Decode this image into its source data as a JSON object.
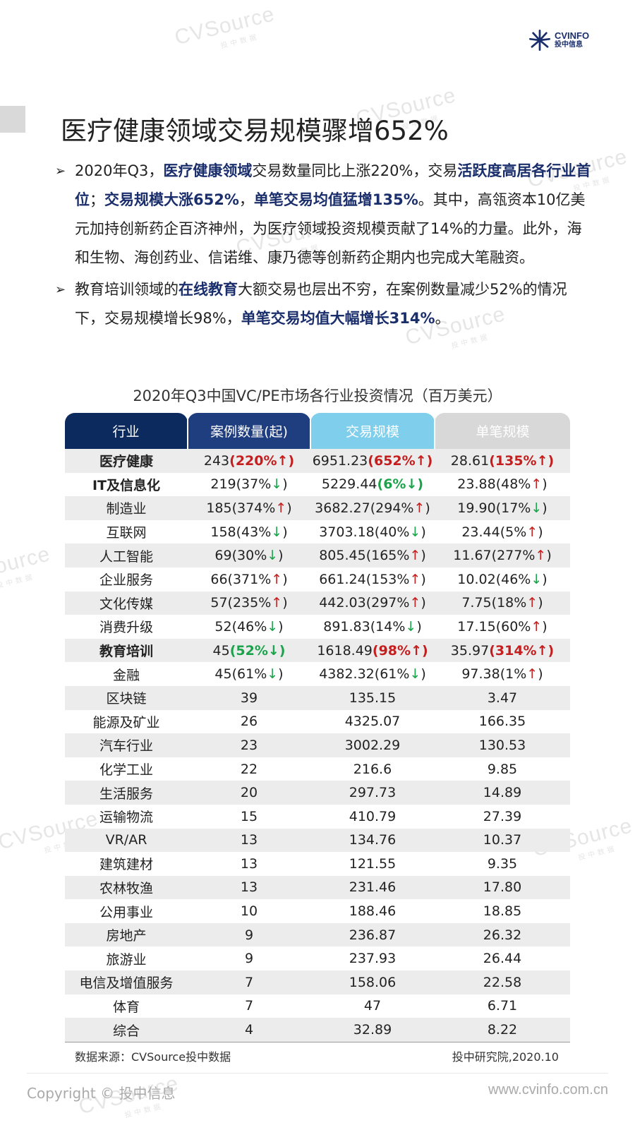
{
  "logo": {
    "brand": "CVINFO",
    "sub": "投中信息"
  },
  "watermark": {
    "text": "CVSource",
    "sub": "投中数据"
  },
  "title": "医疗健康领域交易规模骤增652%",
  "bullets": [
    {
      "parts": [
        {
          "t": "2020年Q3，"
        },
        {
          "t": "医疗健康领域",
          "hl": true
        },
        {
          "t": "交易数量同比上涨220%，交易"
        },
        {
          "t": "活跃度高居各行业首位",
          "hl": true
        },
        {
          "t": "；"
        },
        {
          "t": "交易规模大涨652%",
          "hl": true
        },
        {
          "t": "，"
        },
        {
          "t": "单笔交易均值猛增135%",
          "hl": true
        },
        {
          "t": "。其中，高瓴资本10亿美元加持创新药企百济神州，为医疗领域投资规模贡献了14%的力量。此外，海和生物、海创药业、信诺维、康乃德等创新药企期内也完成大笔融资。"
        }
      ]
    },
    {
      "parts": [
        {
          "t": "教育培训领域的"
        },
        {
          "t": "在线教育",
          "hl": true
        },
        {
          "t": "大额交易也层出不穷，在案例数量减少52%的情况下，交易规模增长98%，"
        },
        {
          "t": "单笔交易均值大幅增长314%",
          "hl": true
        },
        {
          "t": "。"
        }
      ]
    }
  ],
  "table": {
    "title": "2020年Q3中国VC/PE市场各行业投资情况（百万美元）",
    "headers": [
      "行业",
      "案例数量(起)",
      "交易规模",
      "单笔规模"
    ],
    "rows": [
      {
        "industry": "医疗健康",
        "strong": true,
        "cells": [
          {
            "v": "243",
            "c": "220%",
            "d": "up",
            "b": true
          },
          {
            "v": "6951.23",
            "c": "652%",
            "d": "up",
            "b": true
          },
          {
            "v": "28.61",
            "c": "135%",
            "d": "up",
            "b": true
          }
        ]
      },
      {
        "industry": "IT及信息化",
        "strong": true,
        "cells": [
          {
            "v": "219",
            "c": "37%",
            "d": "down"
          },
          {
            "v": "5229.44",
            "c": "6%",
            "d": "down",
            "b": true
          },
          {
            "v": "23.88",
            "c": "48%",
            "d": "up"
          }
        ]
      },
      {
        "industry": "制造业",
        "cells": [
          {
            "v": "185",
            "c": "374%",
            "d": "up"
          },
          {
            "v": "3682.27",
            "c": "294%",
            "d": "up"
          },
          {
            "v": "19.90",
            "c": "17%",
            "d": "down"
          }
        ]
      },
      {
        "industry": "互联网",
        "cells": [
          {
            "v": "158",
            "c": "43%",
            "d": "down"
          },
          {
            "v": "3703.18",
            "c": "40%",
            "d": "down"
          },
          {
            "v": "23.44",
            "c": "5%",
            "d": "up"
          }
        ]
      },
      {
        "industry": "人工智能",
        "cells": [
          {
            "v": "69",
            "c": "30%",
            "d": "down"
          },
          {
            "v": "805.45",
            "c": "165%",
            "d": "up"
          },
          {
            "v": "11.67",
            "c": "277%",
            "d": "up"
          }
        ]
      },
      {
        "industry": "企业服务",
        "cells": [
          {
            "v": "66",
            "c": "371%",
            "d": "up"
          },
          {
            "v": "661.24",
            "c": "153%",
            "d": "up"
          },
          {
            "v": "10.02",
            "c": "46%",
            "d": "down"
          }
        ]
      },
      {
        "industry": "文化传媒",
        "cells": [
          {
            "v": "57",
            "c": "235%",
            "d": "up"
          },
          {
            "v": "442.03",
            "c": "297%",
            "d": "up"
          },
          {
            "v": "7.75",
            "c": "18%",
            "d": "up"
          }
        ]
      },
      {
        "industry": "消费升级",
        "cells": [
          {
            "v": "52",
            "c": "46%",
            "d": "down"
          },
          {
            "v": "891.83",
            "c": "14%",
            "d": "down"
          },
          {
            "v": "17.15",
            "c": "60%",
            "d": "up"
          }
        ]
      },
      {
        "industry": "教育培训",
        "strong": true,
        "cells": [
          {
            "v": "45",
            "c": "52%",
            "d": "down",
            "b": true
          },
          {
            "v": "1618.49",
            "c": "98%",
            "d": "up",
            "b": true
          },
          {
            "v": "35.97",
            "c": "314%",
            "d": "up",
            "b": true
          }
        ]
      },
      {
        "industry": "金融",
        "cells": [
          {
            "v": "45",
            "c": "61%",
            "d": "down"
          },
          {
            "v": "4382.32",
            "c": "61%",
            "d": "down"
          },
          {
            "v": "97.38",
            "c": "1%",
            "d": "up"
          }
        ]
      },
      {
        "industry": "区块链",
        "cells": [
          {
            "v": "39"
          },
          {
            "v": "135.15"
          },
          {
            "v": "3.47"
          }
        ]
      },
      {
        "industry": "能源及矿业",
        "cells": [
          {
            "v": "26"
          },
          {
            "v": "4325.07"
          },
          {
            "v": "166.35"
          }
        ]
      },
      {
        "industry": "汽车行业",
        "cells": [
          {
            "v": "23"
          },
          {
            "v": "3002.29"
          },
          {
            "v": "130.53"
          }
        ]
      },
      {
        "industry": "化学工业",
        "cells": [
          {
            "v": "22"
          },
          {
            "v": "216.6"
          },
          {
            "v": "9.85"
          }
        ]
      },
      {
        "industry": "生活服务",
        "cells": [
          {
            "v": "20"
          },
          {
            "v": "297.73"
          },
          {
            "v": "14.89"
          }
        ]
      },
      {
        "industry": "运输物流",
        "cells": [
          {
            "v": "15"
          },
          {
            "v": "410.79"
          },
          {
            "v": "27.39"
          }
        ]
      },
      {
        "industry": "VR/AR",
        "cells": [
          {
            "v": "13"
          },
          {
            "v": "134.76"
          },
          {
            "v": "10.37"
          }
        ]
      },
      {
        "industry": "建筑建材",
        "cells": [
          {
            "v": "13"
          },
          {
            "v": "121.55"
          },
          {
            "v": "9.35"
          }
        ]
      },
      {
        "industry": "农林牧渔",
        "cells": [
          {
            "v": "13"
          },
          {
            "v": "231.46"
          },
          {
            "v": "17.80"
          }
        ]
      },
      {
        "industry": "公用事业",
        "cells": [
          {
            "v": "10"
          },
          {
            "v": "188.46"
          },
          {
            "v": "18.85"
          }
        ]
      },
      {
        "industry": "房地产",
        "cells": [
          {
            "v": "9"
          },
          {
            "v": "236.87"
          },
          {
            "v": "26.32"
          }
        ]
      },
      {
        "industry": "旅游业",
        "cells": [
          {
            "v": "9"
          },
          {
            "v": "237.93"
          },
          {
            "v": "26.44"
          }
        ]
      },
      {
        "industry": "电信及增值服务",
        "cells": [
          {
            "v": "7"
          },
          {
            "v": "158.06"
          },
          {
            "v": "22.58"
          }
        ]
      },
      {
        "industry": "体育",
        "cells": [
          {
            "v": "7"
          },
          {
            "v": "47"
          },
          {
            "v": "6.71"
          }
        ]
      },
      {
        "industry": "综合",
        "cells": [
          {
            "v": "4"
          },
          {
            "v": "32.89"
          },
          {
            "v": "8.22"
          }
        ]
      }
    ],
    "source": "数据来源：CVSource投中数据",
    "institute": "投中研究院,2020.10"
  },
  "footer": {
    "copyright": "Copyright © 投中信息",
    "site": "www.cvinfo.com.cn"
  },
  "colors": {
    "navy": "#1a2e6c",
    "up": "#c41e1e",
    "down": "#1aa34a",
    "shade": "#ececec"
  }
}
